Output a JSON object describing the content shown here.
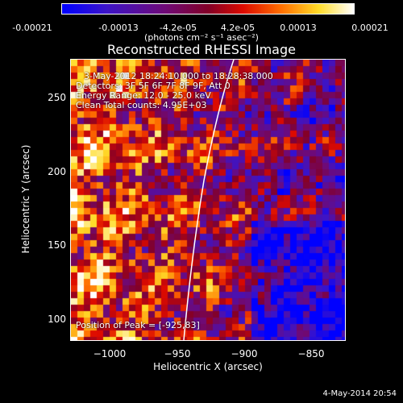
{
  "colorbar": {
    "ticks": [
      "-0.00021",
      "-0.00013",
      "-4.2e-05",
      "4.2e-05",
      "0.00013",
      "0.00021"
    ],
    "units": "(photons cm⁻² s⁻¹ asec⁻²)"
  },
  "title": "Reconstructed RHESSI Image",
  "annotations": {
    "time_range": "3-May-2012 18:24:10.000 to 18:28:38.000",
    "detectors": "Detectors: 3F 5F 6F 7F 8F 9F, Att 0",
    "energy": "Energy Range: 12.0 - 25.0 keV",
    "clean": "Clean     Total counts: 4.95E+03",
    "peak": "Position of Peak = [-925,83]"
  },
  "axes": {
    "xlabel": "Heliocentric X (arcsec)",
    "ylabel": "Heliocentric Y (arcsec)",
    "xticks": [
      "−1000",
      "−950",
      "−900",
      "−850"
    ],
    "yticks": [
      "250",
      "200",
      "150",
      "100"
    ],
    "xlim": [
      -1030,
      -835
    ],
    "ylim": [
      85,
      280
    ]
  },
  "timestamp": "4-May-2014 20:54",
  "colors": {
    "low": "#0000ff",
    "mid": "#7f007f",
    "high": "#ffffff"
  }
}
